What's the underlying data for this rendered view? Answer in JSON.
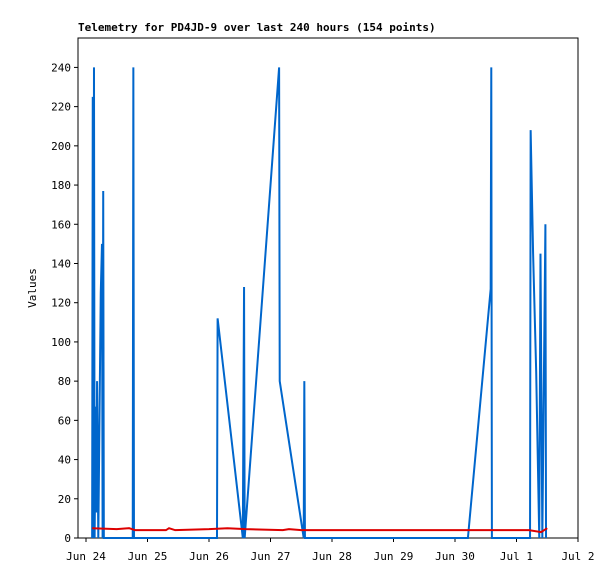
{
  "chart_data": {
    "type": "line",
    "title": "Telemetry for PD4JD-9 over last 240 hours (154 points)",
    "y_label": "Values",
    "xlim": [
      -0.13,
      8
    ],
    "xticks": [
      {
        "value": 0,
        "label": "Jun 24"
      },
      {
        "value": 1,
        "label": "Jun 25"
      },
      {
        "value": 2,
        "label": "Jun 26"
      },
      {
        "value": 3,
        "label": "Jun 27"
      },
      {
        "value": 4,
        "label": "Jun 28"
      },
      {
        "value": 5,
        "label": "Jun 29"
      },
      {
        "value": 6,
        "label": "Jun 30"
      },
      {
        "value": 7,
        "label": "Jul 1"
      },
      {
        "value": 8,
        "label": "Jul 2"
      }
    ],
    "ylim": [
      0,
      255
    ],
    "yticks": [
      0,
      20,
      40,
      60,
      80,
      100,
      120,
      140,
      160,
      180,
      200,
      220,
      240
    ],
    "series": [
      {
        "color": "#0066cc",
        "x": [
          0.1,
          0.11,
          0.12,
          0.13,
          0.14,
          0.16,
          0.17,
          0.18,
          0.2,
          0.24,
          0.26,
          0.27,
          0.28,
          0.29,
          0.76,
          0.77,
          0.78,
          2.13,
          2.14,
          2.55,
          2.57,
          2.58,
          3.14,
          3.15,
          3.54,
          3.55,
          3.56,
          6.21,
          6.58,
          6.59,
          6.6,
          7.22,
          7.23,
          7.27,
          7.32,
          7.37,
          7.39,
          7.42,
          7.47,
          7.48
        ],
        "values": [
          0,
          225,
          0,
          240,
          0,
          67,
          13,
          80,
          0,
          125,
          150,
          0,
          177,
          0,
          0,
          240,
          0,
          0,
          112,
          0,
          128,
          0,
          240,
          80,
          0,
          80,
          0,
          0,
          127,
          240,
          0,
          0,
          208,
          145,
          85,
          0,
          145,
          0,
          160,
          0
        ]
      },
      {
        "color": "#dd0000",
        "x": [
          0.1,
          0.5,
          0.7,
          0.8,
          1.3,
          1.35,
          1.45,
          2.0,
          2.3,
          2.6,
          3.2,
          3.3,
          3.5,
          6.5,
          7.2,
          7.4,
          7.5
        ],
        "values": [
          5,
          4.5,
          5,
          4,
          4,
          5,
          4,
          4.5,
          5,
          4.5,
          4,
          4.5,
          4,
          4,
          4,
          3,
          5
        ]
      }
    ]
  }
}
